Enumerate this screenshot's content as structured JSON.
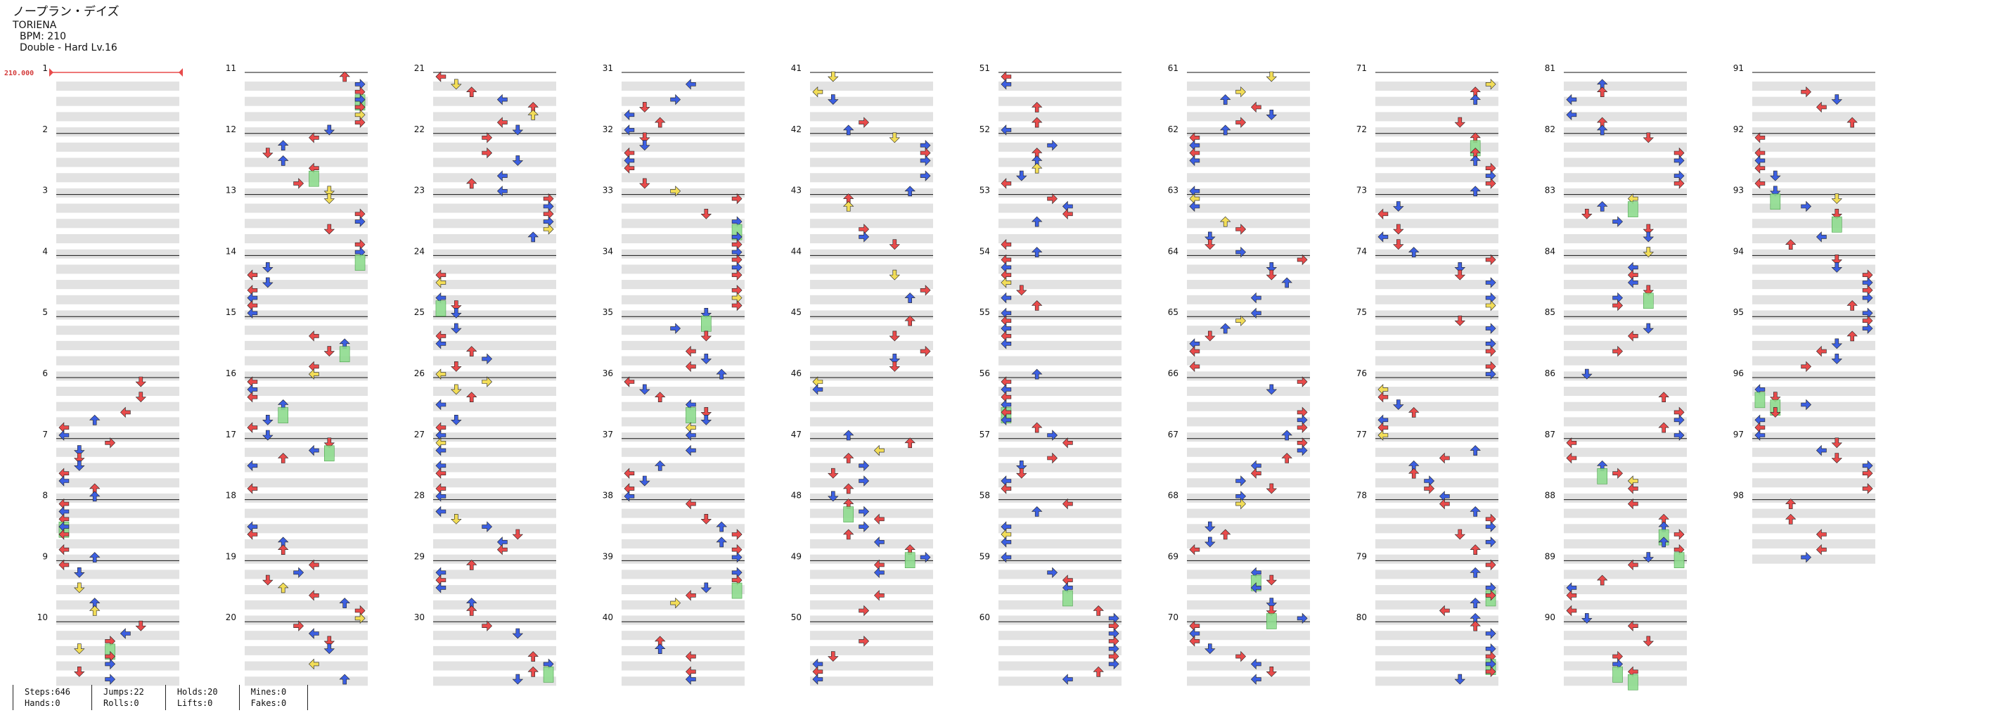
{
  "song": {
    "title": "ノープラン・デイズ",
    "artist": "TORIENA",
    "bpm_text": "BPM: 210",
    "difficulty_text": "Double - Hard  Lv.16"
  },
  "bpm_marker": "210.000",
  "colors": {
    "red": "#e84b4b",
    "blue": "#3c5fe0",
    "yellow": "#f2dd58",
    "green": "#8fdc8f",
    "stripe": "#e2e2e2",
    "measure_line": "#111111"
  },
  "measures": [
    "1",
    "2",
    "3",
    "4",
    "5",
    "6",
    "7",
    "8",
    "9",
    "10",
    "11",
    "12",
    "13",
    "14",
    "15",
    "16",
    "17",
    "18",
    "19",
    "20",
    "21",
    "22",
    "23",
    "24",
    "25",
    "26",
    "27",
    "28",
    "29",
    "30",
    "31",
    "32",
    "33",
    "34",
    "35",
    "36",
    "37",
    "38",
    "39",
    "40",
    "41",
    "42",
    "43",
    "44",
    "45",
    "46",
    "47",
    "48",
    "49",
    "50",
    "51",
    "52",
    "53",
    "54",
    "55",
    "56",
    "57",
    "58",
    "59",
    "60",
    "61",
    "62",
    "63",
    "64",
    "65",
    "66",
    "67",
    "68",
    "69",
    "70",
    "71",
    "72",
    "73",
    "74",
    "75",
    "76",
    "77",
    "78",
    "79",
    "80",
    "81",
    "82",
    "83",
    "84",
    "85",
    "86",
    "87",
    "88",
    "89",
    "90",
    "91",
    "92",
    "93",
    "94",
    "95",
    "96",
    "97",
    "98"
  ],
  "stats": {
    "steps": "Steps:646",
    "hands": "Hands:0",
    "jumps": "Jumps:22",
    "rolls": "Rolls:0",
    "holds": "Holds:20",
    "lifts": "Lifts:0",
    "mines": "Mines:0",
    "fakes": "Fakes:0"
  }
}
